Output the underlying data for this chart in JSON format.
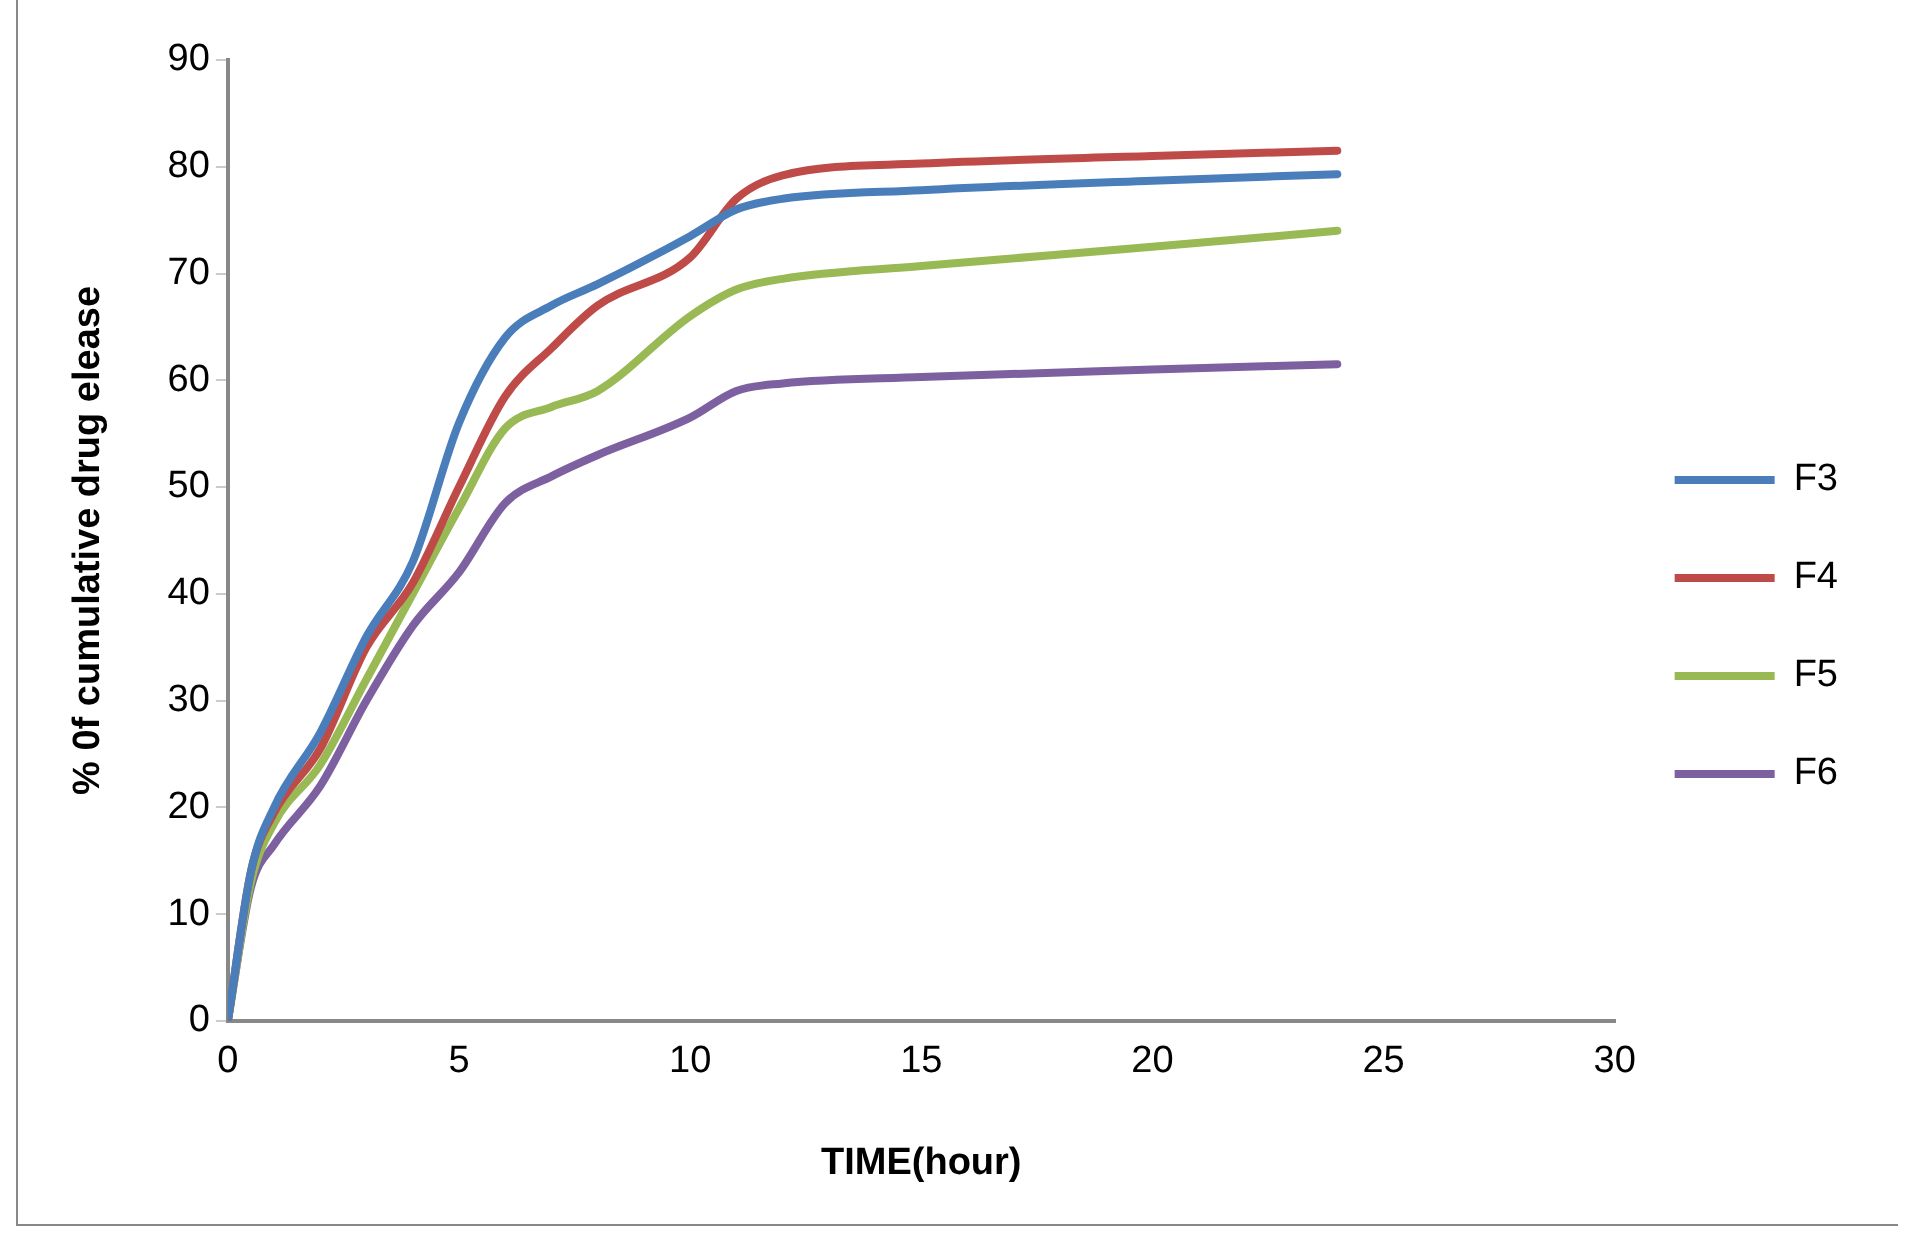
{
  "chart_data": {
    "type": "line",
    "xlabel": "TIME(hour)",
    "ylabel": "% 0f cumulative drug elease",
    "x": [
      0,
      0.5,
      1,
      2,
      3,
      4,
      5,
      6,
      7,
      8,
      10,
      11,
      12,
      15,
      20,
      24
    ],
    "series": [
      {
        "name": "F3",
        "color": "#4a7ebb",
        "values": [
          0,
          14,
          20,
          27,
          36,
          43,
          56,
          64,
          67,
          69,
          73.5,
          76,
          77,
          77.8,
          78.7,
          79.3
        ]
      },
      {
        "name": "F4",
        "color": "#be4b48",
        "values": [
          0,
          14,
          19.5,
          25.5,
          35,
          41,
          50,
          58.5,
          63,
          67,
          71.5,
          77,
          79.2,
          80.3,
          81,
          81.5
        ]
      },
      {
        "name": "F5",
        "color": "#98b954",
        "values": [
          0,
          13,
          18.5,
          24,
          32,
          40,
          48,
          55.5,
          57.5,
          59,
          66,
          68.5,
          69.5,
          70.7,
          72.5,
          74
        ]
      },
      {
        "name": "F6",
        "color": "#7d60a0",
        "values": [
          0,
          12.5,
          16.5,
          22,
          30,
          37,
          42,
          48.5,
          51,
          53,
          56.5,
          59,
          59.7,
          60.3,
          61,
          61.5
        ]
      }
    ],
    "xlim": [
      0,
      30
    ],
    "xticks": [
      0,
      5,
      10,
      15,
      20,
      25,
      30
    ],
    "ylim": [
      0,
      90
    ],
    "yticks": [
      0,
      10,
      20,
      30,
      40,
      50,
      60,
      70,
      80,
      90
    ],
    "grid": false,
    "legend": "right",
    "marker": "none",
    "line_style": "solid"
  }
}
